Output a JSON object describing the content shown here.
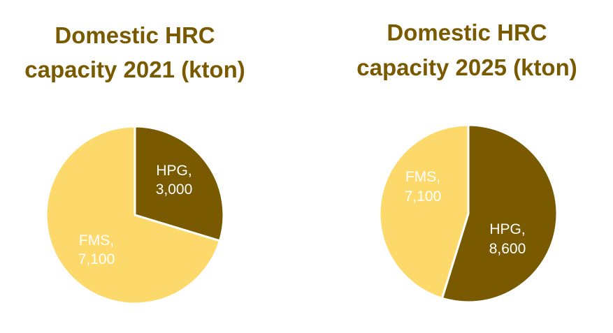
{
  "chart_data": [
    {
      "type": "pie",
      "title_lines": [
        "Domestic HRC",
        "capacity 2021 (kton)"
      ],
      "slices": [
        {
          "label": "HPG,",
          "value_text": "3,000",
          "value": 3000,
          "color": "#7a5a00"
        },
        {
          "label": "FMS,",
          "value_text": "7,100",
          "value": 7100,
          "color": "#fdd96b"
        }
      ]
    },
    {
      "type": "pie",
      "title_lines": [
        "Domestic HRC",
        "capacity 2025 (kton)"
      ],
      "slices": [
        {
          "label": "HPG,",
          "value_text": "8,600",
          "value": 8600,
          "color": "#7a5a00"
        },
        {
          "label": "FMS,",
          "value_text": "7,100",
          "value": 7100,
          "color": "#fdd96b"
        }
      ]
    }
  ],
  "colors": {
    "title": "#7a5a00",
    "label_on_dark": "#ffffff",
    "label_on_light": "#ffffff",
    "separator": "#ffffff"
  }
}
